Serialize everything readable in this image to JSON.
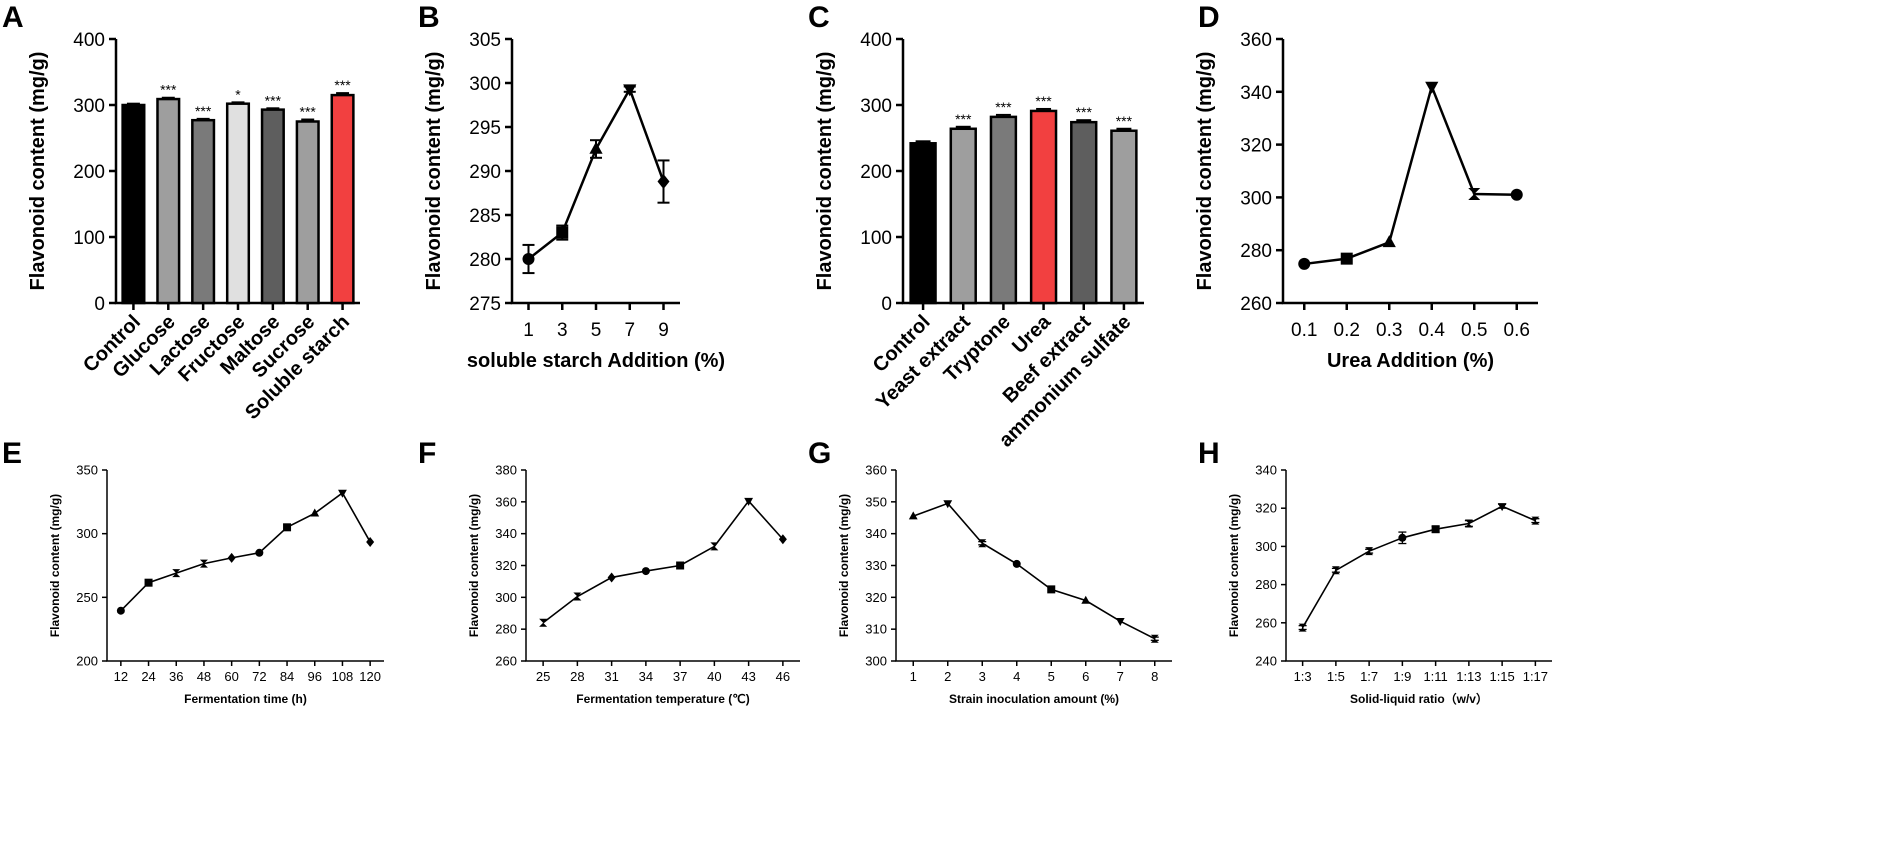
{
  "chart_data": [
    {
      "id": "A",
      "type": "bar",
      "panel_label": "A",
      "categories": [
        "Control",
        "Glucose",
        "Lactose",
        "Fructose",
        "Maltose",
        "Sucrose",
        "Soluble starch"
      ],
      "values": [
        300,
        309,
        277,
        302,
        293,
        275,
        315
      ],
      "errors": [
        2,
        2,
        2,
        2,
        2,
        3,
        3
      ],
      "significance": [
        "",
        "***",
        "***",
        "*",
        "***",
        "***",
        "***"
      ],
      "bar_colors": [
        "#000000",
        "#9e9e9e",
        "#7a7a7a",
        "#e0e0e0",
        "#5e5e5e",
        "#9e9e9e",
        "#f24040"
      ],
      "ylabel": "Flavonoid content (mg/g)",
      "xlabel": "",
      "ylim": [
        0,
        400
      ],
      "yticks": [
        0,
        100,
        200,
        300,
        400
      ]
    },
    {
      "id": "B",
      "type": "line",
      "panel_label": "B",
      "x": [
        "1",
        "3",
        "5",
        "7",
        "9"
      ],
      "values": [
        280,
        283,
        292.5,
        299.3,
        288.8
      ],
      "errors": [
        1.6,
        0.8,
        1.0,
        0.3,
        2.4
      ],
      "markers": [
        "circle",
        "square",
        "triangle",
        "triangle-down",
        "diamond"
      ],
      "ylabel": "Flavonoid content (mg/g)",
      "xlabel": "soluble starch Addition (%)",
      "ylim": [
        275,
        305
      ],
      "yticks": [
        275,
        280,
        285,
        290,
        295,
        300,
        305
      ]
    },
    {
      "id": "C",
      "type": "bar",
      "panel_label": "C",
      "categories": [
        "Control",
        "Yeast extract",
        "Tryptone",
        "Urea",
        "Beef extract",
        "ammonium sulfate"
      ],
      "values": [
        242,
        264,
        282,
        291,
        274,
        261
      ],
      "errors": [
        3,
        3,
        3,
        3,
        3,
        3
      ],
      "significance": [
        "",
        "***",
        "***",
        "***",
        "***",
        "***"
      ],
      "bar_colors": [
        "#000000",
        "#9e9e9e",
        "#7a7a7a",
        "#f24040",
        "#5e5e5e",
        "#9e9e9e"
      ],
      "ylabel": "Flavonoid content (mg/g)",
      "xlabel": "",
      "ylim": [
        0,
        400
      ],
      "yticks": [
        0,
        100,
        200,
        300,
        400
      ]
    },
    {
      "id": "D",
      "type": "line",
      "panel_label": "D",
      "x": [
        "0.1",
        "0.2",
        "0.3",
        "0.4",
        "0.5",
        "0.6"
      ],
      "values": [
        274.8,
        276.8,
        283,
        342,
        301.3,
        301
      ],
      "errors": [
        0,
        0,
        0,
        0,
        0,
        0
      ],
      "markers": [
        "circle",
        "square",
        "triangle",
        "triangle-down",
        "star",
        "circle"
      ],
      "ylabel": "Flavonoid content (mg/g)",
      "xlabel": "Urea Addition (%)",
      "ylim": [
        260,
        360
      ],
      "yticks": [
        260,
        280,
        300,
        320,
        340,
        360
      ]
    },
    {
      "id": "E",
      "type": "line",
      "panel_label": "E",
      "x": [
        "12",
        "24",
        "36",
        "48",
        "60",
        "72",
        "84",
        "96",
        "108",
        "120"
      ],
      "values": [
        239.5,
        261.5,
        269,
        276.5,
        281,
        285,
        305,
        316,
        332,
        293.5
      ],
      "errors": [
        0,
        0,
        0,
        0,
        0,
        0,
        0,
        0,
        0,
        0
      ],
      "markers": [
        "circle",
        "square",
        "star",
        "star",
        "diamond",
        "circle",
        "square",
        "triangle",
        "triangle-down",
        "diamond"
      ],
      "ylabel": "Flavonoid content (mg/g)",
      "xlabel": "Fermentation time (h)",
      "ylim": [
        200,
        350
      ],
      "yticks": [
        200,
        250,
        300,
        350
      ]
    },
    {
      "id": "F",
      "type": "line",
      "panel_label": "F",
      "x": [
        "25",
        "28",
        "31",
        "34",
        "37",
        "40",
        "43",
        "46"
      ],
      "values": [
        284,
        300.5,
        312.5,
        316.5,
        320,
        332,
        360.5,
        336.5
      ],
      "errors": [
        0,
        0,
        0,
        0,
        0,
        0,
        0,
        0
      ],
      "markers": [
        "star",
        "star",
        "diamond",
        "circle",
        "square",
        "star",
        "triangle-down",
        "diamond"
      ],
      "ylabel": "Flavonoid content (mg/g)",
      "xlabel": "Fermentation temperature (℃)",
      "ylim": [
        260,
        380
      ],
      "yticks": [
        260,
        280,
        300,
        320,
        340,
        360,
        380
      ]
    },
    {
      "id": "G",
      "type": "line",
      "panel_label": "G",
      "x": [
        "1",
        "2",
        "3",
        "4",
        "5",
        "6",
        "7",
        "8"
      ],
      "values": [
        345.5,
        349.5,
        337,
        330.5,
        322.5,
        319,
        312.5,
        307
      ],
      "errors": [
        0,
        0,
        0.5,
        0,
        0,
        0,
        0,
        0.5
      ],
      "markers": [
        "triangle",
        "triangle-down",
        "star",
        "circle",
        "square",
        "triangle",
        "triangle-down",
        "star"
      ],
      "ylabel": "Flavonoid content (mg/g)",
      "xlabel": "Strain inoculation amount (%)",
      "ylim": [
        300,
        360
      ],
      "yticks": [
        300,
        310,
        320,
        330,
        340,
        350,
        360
      ]
    },
    {
      "id": "H",
      "type": "line",
      "panel_label": "H",
      "x": [
        "1:3",
        "1:5",
        "1:7",
        "1:9",
        "1:11",
        "1:13",
        "1:15",
        "1:17"
      ],
      "values": [
        257.5,
        287.5,
        297.5,
        304.5,
        309,
        312,
        321,
        313.5
      ],
      "errors": [
        1,
        1,
        1,
        3,
        1.5,
        1.5,
        1,
        1
      ],
      "markers": [
        "star",
        "star",
        "star",
        "circle",
        "square",
        "star",
        "triangle-down",
        "star"
      ],
      "ylabel": "Flavonoid content (mg/g)",
      "xlabel": "Solid-liquid ratio（w/v）",
      "ylim": [
        240,
        340
      ],
      "yticks": [
        240,
        260,
        280,
        300,
        320,
        340
      ]
    }
  ]
}
